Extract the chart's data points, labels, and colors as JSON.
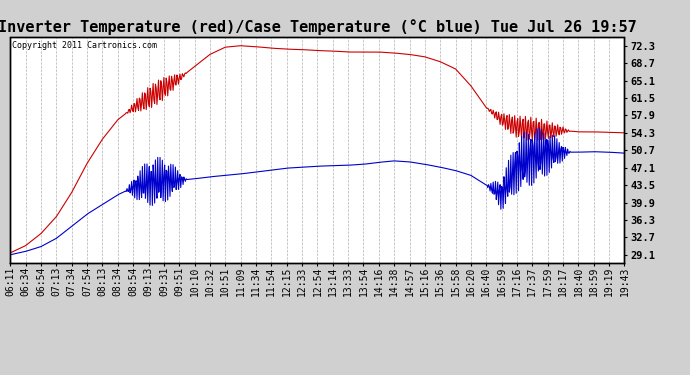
{
  "title": "Inverter Temperature (red)/Case Temperature (°C blue) Tue Jul 26 19:57",
  "copyright": "Copyright 2011 Cartronics.com",
  "ylabel_right_ticks": [
    29.1,
    32.7,
    36.3,
    39.9,
    43.5,
    47.1,
    50.7,
    54.3,
    57.9,
    61.5,
    65.1,
    68.7,
    72.3
  ],
  "ylim": [
    27.5,
    74.0
  ],
  "xlabels": [
    "06:11",
    "06:34",
    "06:54",
    "07:13",
    "07:34",
    "07:54",
    "08:13",
    "08:34",
    "08:54",
    "09:13",
    "09:31",
    "09:51",
    "10:10",
    "10:32",
    "10:51",
    "11:09",
    "11:34",
    "11:54",
    "12:15",
    "12:33",
    "12:54",
    "13:14",
    "13:33",
    "13:54",
    "14:16",
    "14:38",
    "14:57",
    "15:16",
    "15:36",
    "15:58",
    "16:20",
    "16:40",
    "16:59",
    "17:16",
    "17:37",
    "17:59",
    "18:17",
    "18:40",
    "18:59",
    "19:19",
    "19:43"
  ],
  "background_color": "#d0d0d0",
  "plot_bg_color": "#ffffff",
  "grid_color": "#aaaaaa",
  "red_color": "#cc0000",
  "blue_color": "#0000cc",
  "title_fontsize": 11,
  "tick_fontsize": 7
}
